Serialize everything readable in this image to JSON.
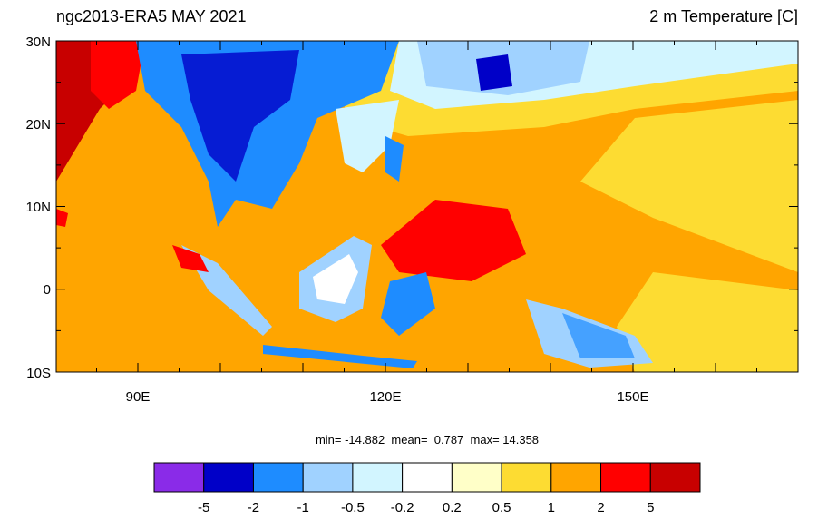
{
  "header": {
    "left_title": "ngc2013-ERA5 MAY 2021",
    "right_title": "2 m Temperature [C]"
  },
  "map": {
    "lat_labels": [
      "30N",
      "20N",
      "10N",
      "0",
      "10S"
    ],
    "lon_labels": [
      "90E",
      "120E",
      "150E"
    ]
  },
  "stats": "min= -14.882  mean=  0.787  max= 14.358",
  "colorbar": {
    "levels": [
      -5,
      -2,
      -1,
      -0.5,
      -0.2,
      0.2,
      0.5,
      1,
      2,
      5
    ],
    "colors": [
      "#8a2be8",
      "#0000c8",
      "#1e8cff",
      "#a0d2ff",
      "#d2f5ff",
      "#ffffff",
      "#ffffc8",
      "#fddc32",
      "#ffa500",
      "#ff0000",
      "#c80000"
    ]
  }
}
